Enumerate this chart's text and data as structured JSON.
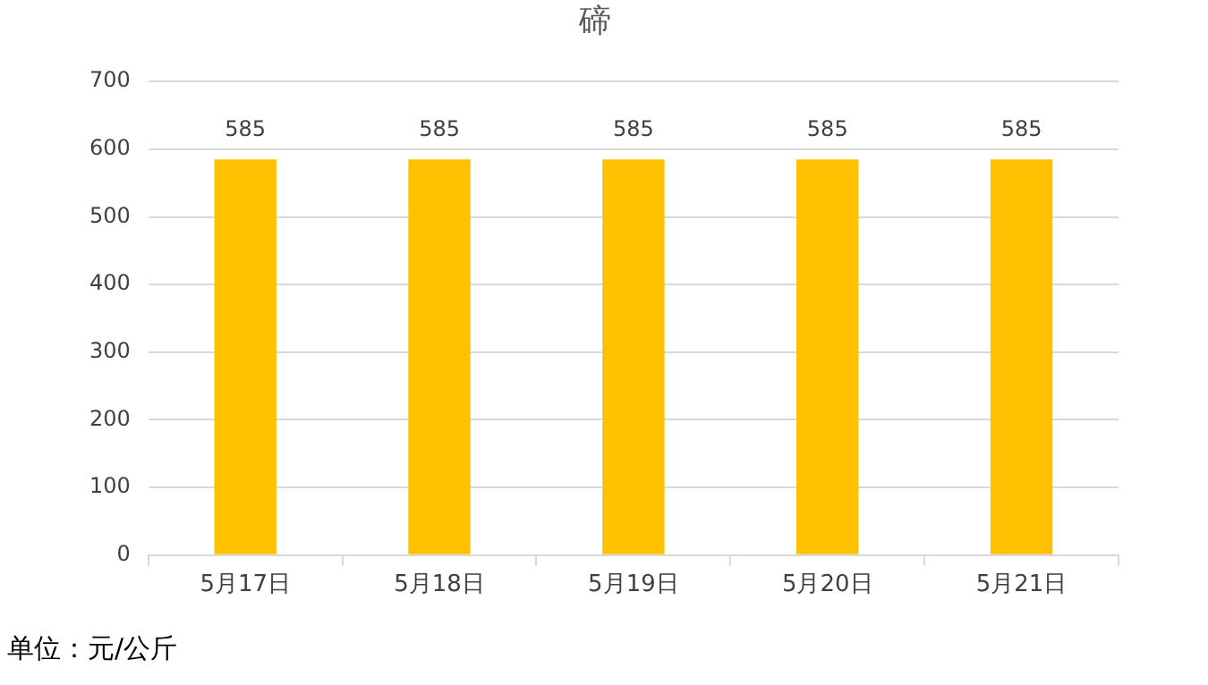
{
  "chart_data": {
    "type": "bar",
    "title": "碲",
    "categories": [
      "5月17日",
      "5月18日",
      "5月19日",
      "5月20日",
      "5月21日"
    ],
    "values": [
      585,
      585,
      585,
      585,
      585
    ],
    "color": "#ffc000",
    "ylim": [
      0,
      700
    ],
    "yticks": [
      0,
      100,
      200,
      300,
      400,
      500,
      600,
      700
    ],
    "grid": "y",
    "data_labels": true,
    "annotations": [
      "单位：元/公斤"
    ]
  }
}
